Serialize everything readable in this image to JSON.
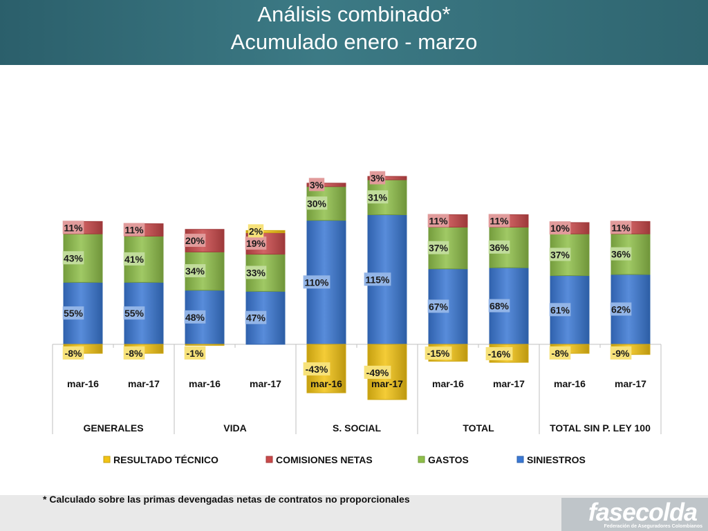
{
  "title": {
    "line1": "Análisis combinado*",
    "line2": "Acumulado  enero - marzo"
  },
  "footnote": "* Calculado sobre las primas devengadas netas de contratos no proporcionales",
  "logo": {
    "name": "fasecolda",
    "subtitle": "Federación de Aseguradores Colombianos"
  },
  "chart_data": {
    "type": "bar",
    "stacked": true,
    "groups": [
      "GENERALES",
      "VIDA",
      "S. SOCIAL",
      "TOTAL",
      "TOTAL SIN P. LEY 100"
    ],
    "categories": [
      "mar-16",
      "mar-17",
      "mar-16",
      "mar-17",
      "mar-16",
      "mar-17",
      "mar-16",
      "mar-17",
      "mar-16",
      "mar-17"
    ],
    "series": [
      {
        "name": "SINIESTROS",
        "color": "#3a78d4",
        "values": [
          55,
          55,
          48,
          47,
          110,
          115,
          67,
          68,
          61,
          62
        ]
      },
      {
        "name": "GASTOS",
        "color": "#8fbf4a",
        "values": [
          43,
          41,
          34,
          33,
          30,
          31,
          37,
          36,
          37,
          36
        ]
      },
      {
        "name": "COMISIONES NETAS",
        "color": "#c9494a",
        "values": [
          11,
          11,
          20,
          19,
          3,
          3,
          11,
          11,
          10,
          11
        ]
      },
      {
        "name": "RESULTADO TÉCNICO",
        "color": "#f2c314",
        "values": [
          -8,
          -8,
          -1,
          2,
          -43,
          -49,
          -15,
          -16,
          -8,
          -9
        ]
      }
    ],
    "data_labels": {
      "SINIESTROS": [
        "55%",
        "55%",
        "48%",
        "47%",
        "110%",
        "115%",
        "67%",
        "68%",
        "61%",
        "62%"
      ],
      "GASTOS": [
        "43%",
        "41%",
        "34%",
        "33%",
        "30%",
        "31%",
        "37%",
        "36%",
        "37%",
        "36%"
      ],
      "COMISIONES NETAS": [
        "11%",
        "11%",
        "20%",
        "19%",
        "3%",
        "3%",
        "11%",
        "11%",
        "10%",
        "11%"
      ],
      "RESULTADO TÉCNICO": [
        "-8%",
        "-8%",
        "-1%",
        "2%",
        "-43%",
        "-49%",
        "-15%",
        "-16%",
        "-8%",
        "-9%"
      ]
    },
    "legend_order": [
      "RESULTADO TÉCNICO",
      "COMISIONES NETAS",
      "GASTOS",
      "SINIESTROS"
    ],
    "legend_position": "bottom",
    "grid": false
  }
}
